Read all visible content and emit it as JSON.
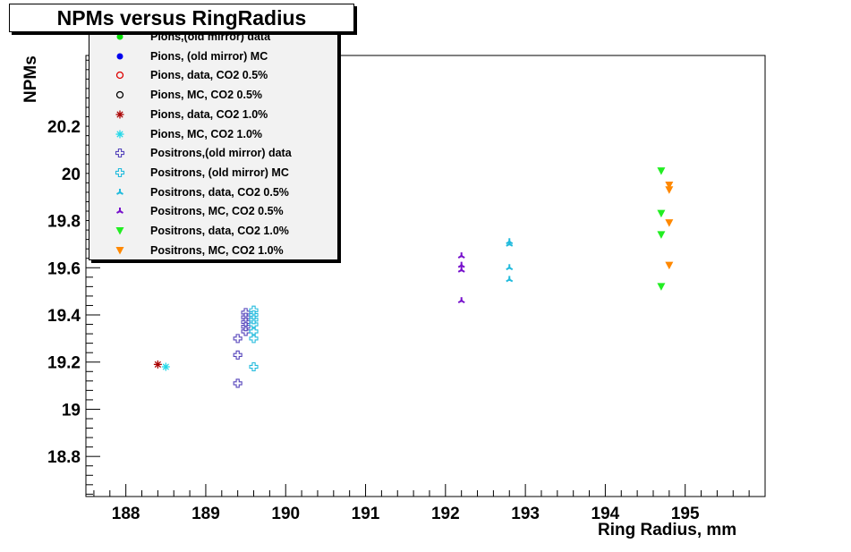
{
  "title": "NPMs versus RingRadius",
  "chart_data": {
    "type": "scatter",
    "title": "NPMs versus RingRadius",
    "xlabel": "Ring Radius, mm",
    "ylabel": "NPMs",
    "xlim": [
      187.5,
      196.0
    ],
    "ylim": [
      18.63,
      20.5
    ],
    "x_ticks": [
      188,
      189,
      190,
      191,
      192,
      193,
      194,
      195
    ],
    "y_ticks": [
      18.8,
      19,
      19.2,
      19.4,
      19.6,
      19.8,
      20,
      20.2
    ],
    "grid": false,
    "legend_position": "top-left",
    "series": [
      {
        "name": "Pions,(old mirror) data",
        "marker": "dot",
        "color": "#00dd00",
        "points": []
      },
      {
        "name": "Pions, (old mirror) MC",
        "marker": "dot",
        "color": "#0000ee",
        "points": []
      },
      {
        "name": "Pions, data,  CO2 0.5%",
        "marker": "circle",
        "color": "#dd0000",
        "points": []
      },
      {
        "name": "Pions, MC,  CO2 0.5%",
        "marker": "circle",
        "color": "#000000",
        "points": []
      },
      {
        "name": "Pions, data,  CO2 1.0%",
        "marker": "asterisk",
        "color": "#aa0000",
        "points": [
          [
            188.4,
            19.19
          ]
        ]
      },
      {
        "name": "Pions, MC,  CO2 1.0%",
        "marker": "asterisk",
        "color": "#22d8e8",
        "points": [
          [
            188.5,
            19.18
          ]
        ]
      },
      {
        "name": "Positrons,(old mirror) data",
        "marker": "cross",
        "color": "#5544bb",
        "points": [
          [
            189.4,
            19.11
          ],
          [
            189.4,
            19.23
          ],
          [
            189.4,
            19.3
          ],
          [
            189.5,
            19.33
          ],
          [
            189.5,
            19.35
          ],
          [
            189.5,
            19.37
          ],
          [
            189.5,
            19.39
          ],
          [
            189.5,
            19.41
          ]
        ]
      },
      {
        "name": "Positrons, (old mirror) MC",
        "marker": "cross",
        "color": "#22bbdd",
        "points": [
          [
            189.6,
            19.18
          ],
          [
            189.6,
            19.3
          ],
          [
            189.6,
            19.33
          ],
          [
            189.6,
            19.36
          ],
          [
            189.6,
            19.38
          ],
          [
            189.6,
            19.4
          ],
          [
            189.6,
            19.42
          ]
        ]
      },
      {
        "name": "Positrons, data,  CO2 0.5%",
        "marker": "tristar",
        "color": "#22bbdd",
        "points": [
          [
            192.8,
            19.55
          ],
          [
            192.8,
            19.6
          ],
          [
            192.8,
            19.7
          ],
          [
            192.8,
            19.71
          ]
        ]
      },
      {
        "name": "Positrons, MC,  CO2 0.5%",
        "marker": "tristar",
        "color": "#7711cc",
        "points": [
          [
            192.2,
            19.46
          ],
          [
            192.2,
            19.59
          ],
          [
            192.2,
            19.61
          ],
          [
            192.2,
            19.65
          ]
        ]
      },
      {
        "name": "Positrons, data,  CO2 1.0%",
        "marker": "triangle",
        "color": "#22ee22",
        "points": [
          [
            194.7,
            19.52
          ],
          [
            194.7,
            19.74
          ],
          [
            194.7,
            19.83
          ],
          [
            194.7,
            20.01
          ]
        ]
      },
      {
        "name": "Positrons, MC,  CO2 1.0%",
        "marker": "triangle",
        "color": "#ff8800",
        "points": [
          [
            194.8,
            19.61
          ],
          [
            194.8,
            19.79
          ],
          [
            194.8,
            19.93
          ],
          [
            194.8,
            19.95
          ]
        ]
      }
    ]
  }
}
